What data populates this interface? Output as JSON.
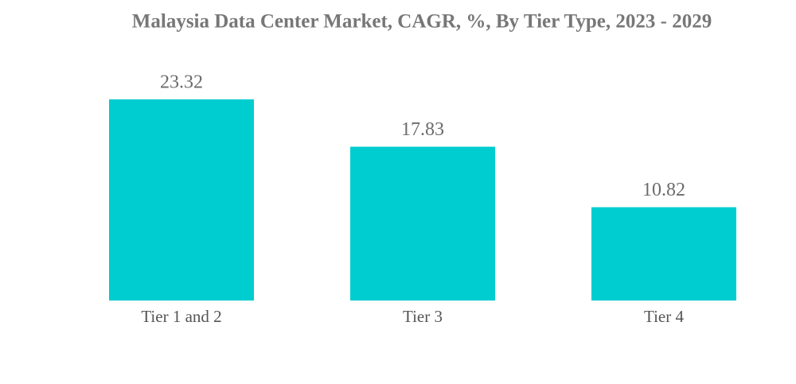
{
  "chart_data": {
    "type": "bar",
    "title": "Malaysia Data Center Market, CAGR, %, By Tier Type, 2023 - 2029",
    "categories": [
      "Tier 1 and 2",
      "Tier 3",
      "Tier 4"
    ],
    "values": [
      23.32,
      17.83,
      10.82
    ],
    "color": "#00cdd0"
  }
}
